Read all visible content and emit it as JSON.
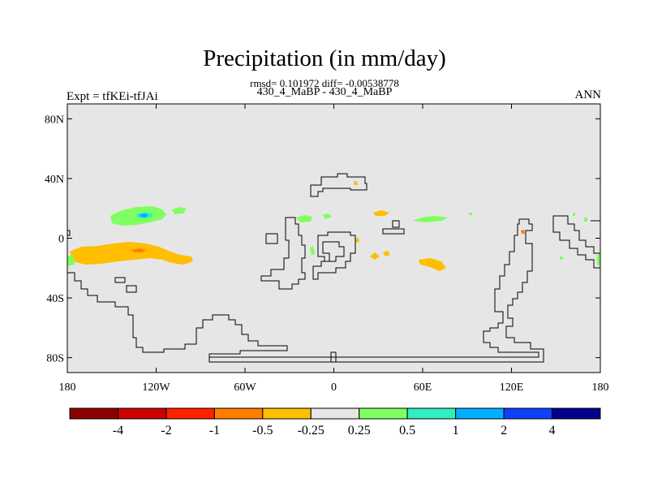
{
  "header": {
    "title": "Precipitation (in mm/day)",
    "stats": "rmsd= 0.101972 diff= -0.00538778",
    "subtitle": "430_4_MaBP - 430_4_MaBP",
    "left_label": "Expt = tfKEi-tfJAi",
    "right_label": "ANN"
  },
  "map": {
    "projection": "cylindrical-equidistant",
    "lon_range": [
      -180,
      180
    ],
    "lat_range": [
      -90,
      90
    ],
    "background_color": "#e6e6e6",
    "lat_ticks": [
      {
        "lat": 80,
        "label": "80N"
      },
      {
        "lat": 40,
        "label": "40N"
      },
      {
        "lat": 0,
        "label": "0"
      },
      {
        "lat": -40,
        "label": "40S"
      },
      {
        "lat": -80,
        "label": "80S"
      }
    ],
    "lon_ticks": [
      {
        "lon": -180,
        "label": "180"
      },
      {
        "lon": -120,
        "label": "120W"
      },
      {
        "lon": -60,
        "label": "60W"
      },
      {
        "lon": 0,
        "label": "0"
      },
      {
        "lon": 60,
        "label": "60E"
      },
      {
        "lon": 120,
        "label": "120E"
      },
      {
        "lon": 180,
        "label": "180"
      }
    ]
  },
  "colorbar": {
    "colors": [
      "#8b0000",
      "#cd0000",
      "#ff2000",
      "#ff7e00",
      "#ffbe00",
      "#e6e6e6",
      "#80ff60",
      "#30f0c0",
      "#00b0ff",
      "#1040ff",
      "#00008b"
    ],
    "labels": [
      "-4",
      "-2",
      "-1",
      "-0.5",
      "-0.25",
      "0.25",
      "0.5",
      "1",
      "2",
      "4"
    ]
  }
}
